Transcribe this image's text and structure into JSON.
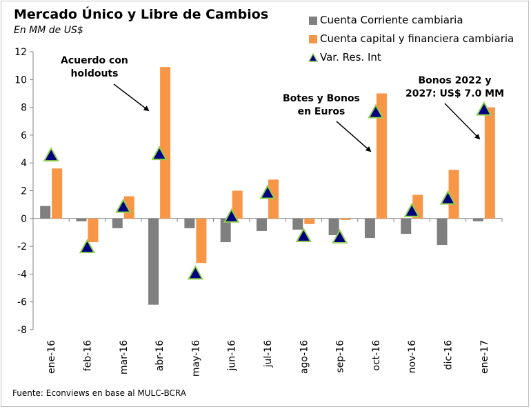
{
  "title": "Mercado Único y Libre de Cambios",
  "subtitle": "En MM de US$",
  "legend": [
    {
      "label": "Cuenta Corriente cambiaria",
      "color": "#7f7f7f",
      "marker": "bar"
    },
    {
      "label": "Cuenta capital y financiera cambiaria",
      "color": "#f79646",
      "marker": "bar"
    },
    {
      "label": "Var. Res. Int",
      "color": "#00007f",
      "marker": "triangle"
    }
  ],
  "annotations": {
    "holdouts": "Acuerdo con\nholdouts",
    "botes": "Botes y Bonos\nen Euros",
    "bonos2022": "Bonos 2022 y\n2027: US$ 7.0 MM"
  },
  "source": "Fuente: Econviews en base al MULC-BCRA",
  "chart_data": {
    "type": "bar",
    "categories": [
      "ene-16",
      "feb-16",
      "mar-16",
      "abr-16",
      "may-16",
      "jun-16",
      "jul-16",
      "ago-16",
      "sep-16",
      "oct-16",
      "nov-16",
      "dic-16",
      "ene-17"
    ],
    "series": [
      {
        "name": "Cuenta Corriente cambiaria",
        "type": "bar",
        "color": "#7f7f7f",
        "values": [
          0.9,
          -0.2,
          -0.7,
          -6.2,
          -0.7,
          -1.7,
          -0.9,
          -0.8,
          -1.2,
          -1.4,
          -1.1,
          -1.9,
          -0.2
        ]
      },
      {
        "name": "Cuenta capital y financiera cambiaria",
        "type": "bar",
        "color": "#f79646",
        "values": [
          3.6,
          -1.7,
          1.6,
          10.9,
          -3.2,
          2.0,
          2.8,
          -0.4,
          -0.1,
          9.0,
          1.7,
          3.5,
          8.0
        ]
      },
      {
        "name": "Var. Res. Int",
        "type": "scatter",
        "marker": "triangle",
        "color": "#00007f",
        "values": [
          4.5,
          -2.1,
          0.8,
          4.6,
          -4.0,
          0.1,
          1.8,
          -1.3,
          -1.4,
          7.6,
          0.5,
          1.4,
          7.8
        ]
      }
    ],
    "ylim": [
      -8,
      12
    ],
    "yticks": [
      -8,
      -6,
      -4,
      -2,
      0,
      2,
      4,
      6,
      8,
      10,
      12
    ],
    "grid": false,
    "legend_position": "top-right"
  }
}
